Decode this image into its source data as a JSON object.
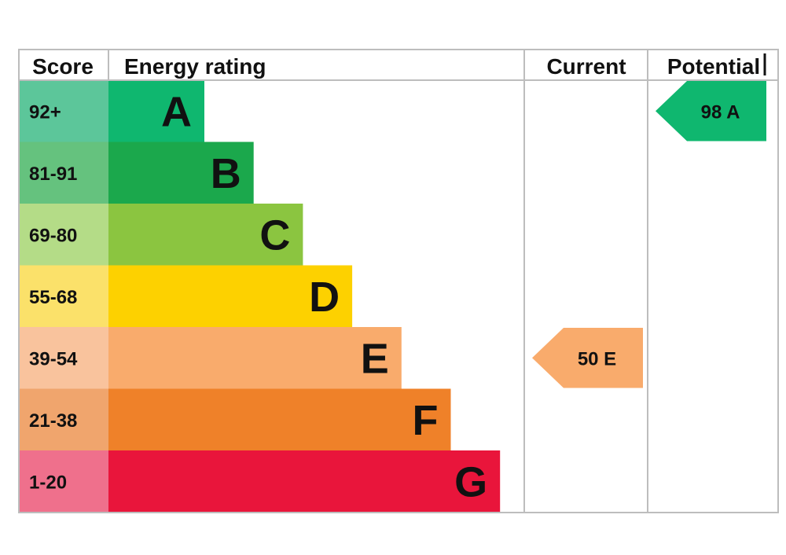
{
  "headers": {
    "score": "Score",
    "rating": "Energy rating",
    "current": "Current",
    "potential": "Potential"
  },
  "chart_data": {
    "type": "bar",
    "bands": [
      {
        "letter": "A",
        "range": "92+",
        "bar_color": "#0fb76f",
        "score_color": "#5cc69a"
      },
      {
        "letter": "B",
        "range": "81-91",
        "bar_color": "#1ba84c",
        "score_color": "#65c27e"
      },
      {
        "letter": "C",
        "range": "69-80",
        "bar_color": "#8bc540",
        "score_color": "#b4dc87"
      },
      {
        "letter": "D",
        "range": "55-68",
        "bar_color": "#fdd100",
        "score_color": "#fbe16a"
      },
      {
        "letter": "E",
        "range": "39-54",
        "bar_color": "#f9ab6c",
        "score_color": "#f9c39d"
      },
      {
        "letter": "F",
        "range": "21-38",
        "bar_color": "#ef8129",
        "score_color": "#f0a56d"
      },
      {
        "letter": "G",
        "range": "1-20",
        "bar_color": "#e9153b",
        "score_color": "#ef708c"
      }
    ],
    "current": {
      "value": 50,
      "band": "E",
      "label": "50  E",
      "color": "#f9ab6c"
    },
    "potential": {
      "value": 98,
      "band": "A",
      "label": "98  A",
      "color": "#0fb76f"
    }
  }
}
